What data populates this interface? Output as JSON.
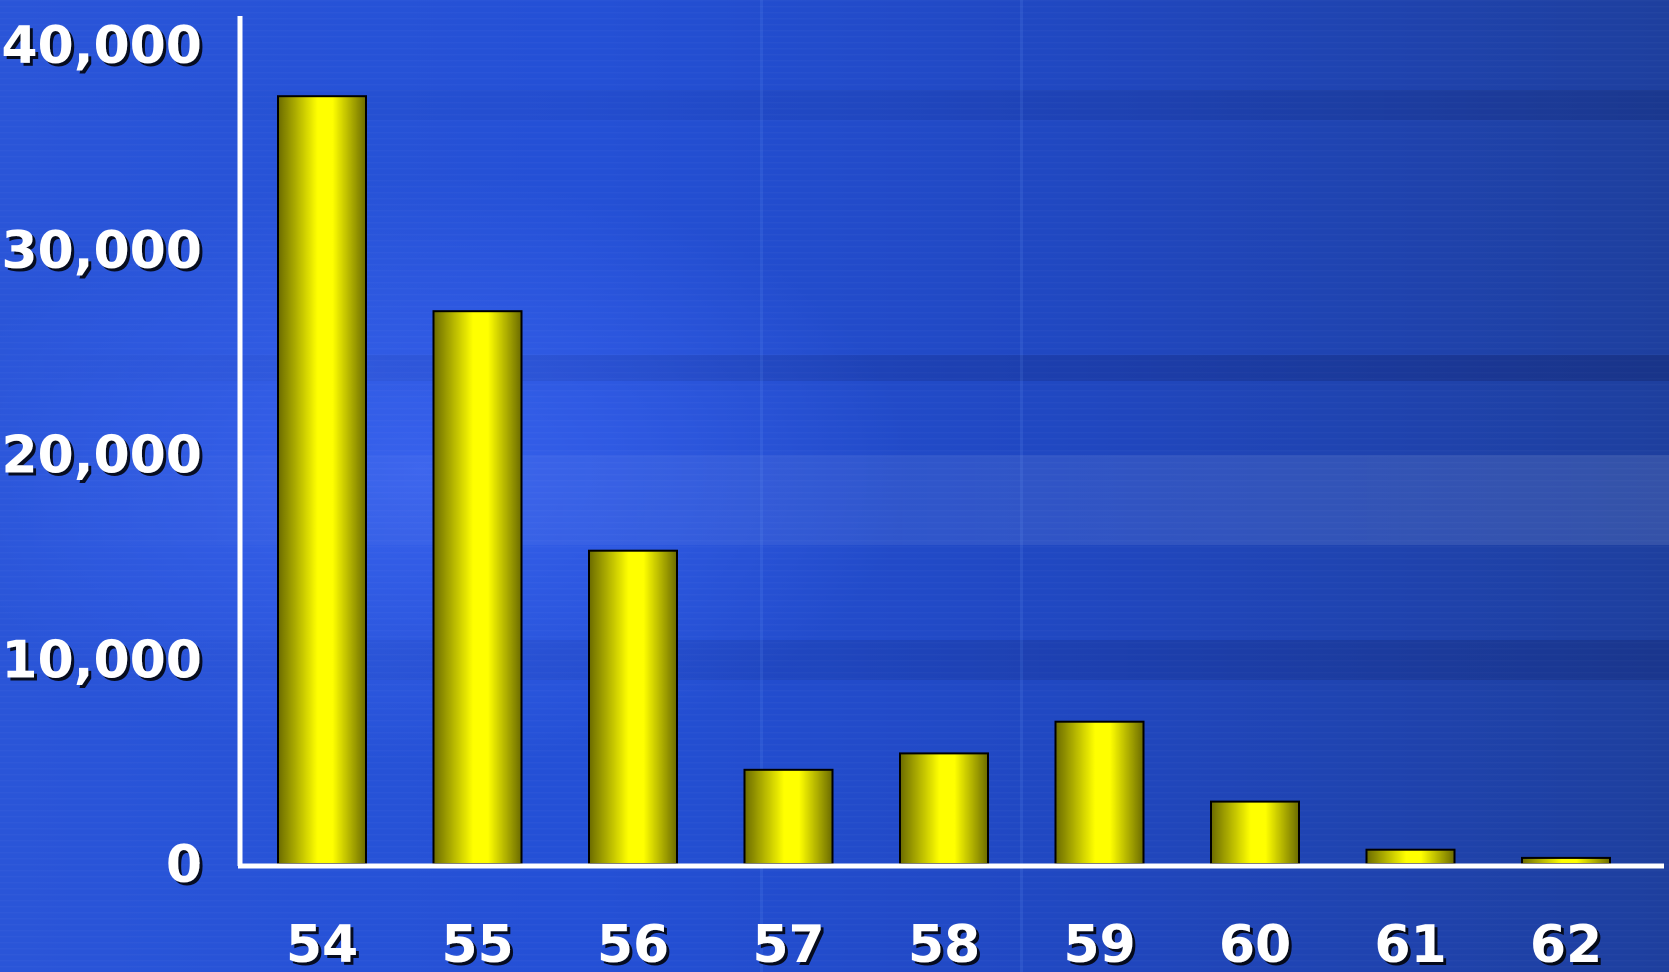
{
  "chart_data": {
    "type": "bar",
    "categories": [
      "54",
      "55",
      "56",
      "57",
      "58",
      "59",
      "60",
      "61",
      "62"
    ],
    "values": [
      37500,
      27000,
      15300,
      4600,
      5400,
      6950,
      3050,
      700,
      300
    ],
    "ylim": [
      0,
      40000
    ],
    "yticks": [
      "0",
      "10,000",
      "20,000",
      "30,000",
      "40,000"
    ],
    "ytick_values": [
      0,
      10000,
      20000,
      30000,
      40000
    ],
    "grid": false,
    "colors": {
      "bar_fill": "#ffff00",
      "bar_shade": "#6b6b00",
      "axis": "#ffffff",
      "background": "#2450d6"
    }
  }
}
